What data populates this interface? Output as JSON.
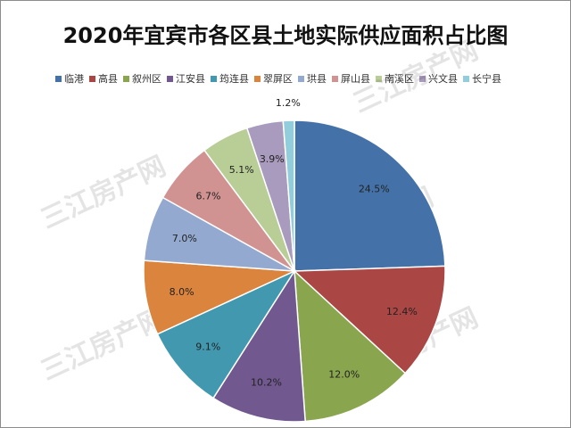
{
  "chart_data": {
    "type": "pie",
    "title": "2020年宜宾市各区县土地实际供应面积占比图",
    "legend_position": "top",
    "slices": [
      {
        "name": "临港",
        "value": 24.5,
        "label": "24.5%",
        "color": "#4472a8"
      },
      {
        "name": "高县",
        "value": 12.4,
        "label": "12.4%",
        "color": "#aa4643"
      },
      {
        "name": "叙州区",
        "value": 12.0,
        "label": "12.0%",
        "color": "#89a54e"
      },
      {
        "name": "江安县",
        "value": 10.2,
        "label": "10.2%",
        "color": "#71588f"
      },
      {
        "name": "筠连县",
        "value": 9.1,
        "label": "9.1%",
        "color": "#4198af"
      },
      {
        "name": "翠屏区",
        "value": 8.0,
        "label": "8.0%",
        "color": "#db843d"
      },
      {
        "name": "珙县",
        "value": 7.0,
        "label": "7.0%",
        "color": "#93a9cf"
      },
      {
        "name": "屏山县",
        "value": 6.7,
        "label": "6.7%",
        "color": "#d19392"
      },
      {
        "name": "南溪区",
        "value": 5.1,
        "label": "5.1%",
        "color": "#b9cd96"
      },
      {
        "name": "兴文县",
        "value": 3.9,
        "label": "3.9%",
        "color": "#a99bbd"
      },
      {
        "name": "长宁县",
        "value": 1.2,
        "label": "1.2%",
        "color": "#92cddc"
      }
    ]
  },
  "watermark": {
    "text": "三江房产网"
  }
}
